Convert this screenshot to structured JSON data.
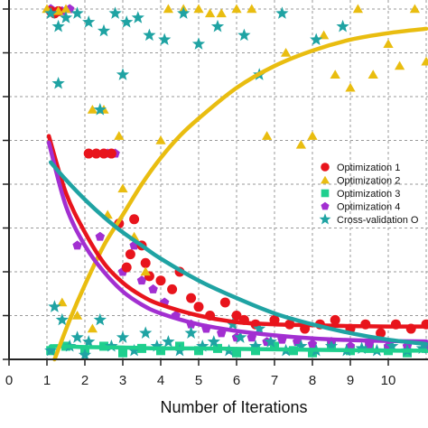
{
  "chart_data": {
    "type": "scatter",
    "title": "",
    "xlabel": "Number of Iterations",
    "ylabel": "",
    "xlim": [
      0,
      11
    ],
    "x_ticks": [
      "0",
      "1",
      "2",
      "3",
      "4",
      "5",
      "6",
      "7",
      "8",
      "9",
      "10"
    ],
    "ylim": [
      0,
      8
    ],
    "grid": true,
    "legend_placement": "right",
    "series": [
      {
        "name": "Optimization 1",
        "marker": "circle",
        "color": "#e8141c",
        "fit": {
          "x": [
            1.05,
            1.5,
            2,
            2.5,
            3,
            3.5,
            4,
            5,
            6,
            7,
            8,
            9,
            10,
            11
          ],
          "y": [
            5.1,
            3.8,
            2.9,
            2.2,
            1.75,
            1.45,
            1.25,
            1.0,
            0.85,
            0.8,
            0.78,
            0.76,
            0.75,
            0.75
          ]
        },
        "points": [
          [
            1.1,
            7.95
          ],
          [
            1.2,
            7.9
          ],
          [
            1.3,
            7.95
          ],
          [
            2.1,
            4.7
          ],
          [
            2.3,
            4.7
          ],
          [
            2.5,
            4.7
          ],
          [
            2.7,
            4.7
          ],
          [
            2.9,
            3.1
          ],
          [
            3.1,
            2.1
          ],
          [
            3.2,
            2.4
          ],
          [
            3.3,
            3.2
          ],
          [
            3.5,
            2.6
          ],
          [
            3.6,
            2.2
          ],
          [
            3.7,
            1.9
          ],
          [
            4.0,
            1.8
          ],
          [
            4.3,
            1.6
          ],
          [
            4.5,
            2.0
          ],
          [
            4.8,
            1.4
          ],
          [
            5.0,
            1.2
          ],
          [
            5.3,
            1.0
          ],
          [
            5.7,
            1.3
          ],
          [
            6.0,
            1.0
          ],
          [
            6.2,
            0.9
          ],
          [
            6.5,
            0.8
          ],
          [
            7.0,
            0.9
          ],
          [
            7.4,
            0.8
          ],
          [
            7.8,
            0.7
          ],
          [
            8.2,
            0.8
          ],
          [
            8.6,
            0.9
          ],
          [
            9.0,
            0.7
          ],
          [
            9.4,
            0.8
          ],
          [
            9.8,
            0.6
          ],
          [
            10.2,
            0.8
          ],
          [
            10.6,
            0.7
          ],
          [
            11.0,
            0.8
          ]
        ]
      },
      {
        "name": "Optimization 2",
        "marker": "triangle",
        "color": "#e9bd10",
        "fit": {
          "x": [
            1.2,
            1.6,
            2,
            2.5,
            3,
            3.5,
            4,
            4.5,
            5,
            6,
            7,
            8,
            9,
            10,
            11
          ],
          "y": [
            0.0,
            0.9,
            1.7,
            2.6,
            3.3,
            4.0,
            4.6,
            5.1,
            5.5,
            6.2,
            6.7,
            7.05,
            7.3,
            7.45,
            7.55
          ]
        },
        "points": [
          [
            1.0,
            8.0
          ],
          [
            1.3,
            7.95
          ],
          [
            1.5,
            8.0
          ],
          [
            2.2,
            5.7
          ],
          [
            2.5,
            5.7
          ],
          [
            2.9,
            5.1
          ],
          [
            3.3,
            2.8
          ],
          [
            3.6,
            2.0
          ],
          [
            4.0,
            5.0
          ],
          [
            4.2,
            8.0
          ],
          [
            4.6,
            8.0
          ],
          [
            5.0,
            8.0
          ],
          [
            5.3,
            7.9
          ],
          [
            5.6,
            7.9
          ],
          [
            6.0,
            8.0
          ],
          [
            6.4,
            8.0
          ],
          [
            6.8,
            5.1
          ],
          [
            7.3,
            7.0
          ],
          [
            7.7,
            4.9
          ],
          [
            8.0,
            5.1
          ],
          [
            8.3,
            7.4
          ],
          [
            8.6,
            6.5
          ],
          [
            9.0,
            6.2
          ],
          [
            9.2,
            8.0
          ],
          [
            9.6,
            6.5
          ],
          [
            10.0,
            7.2
          ],
          [
            10.3,
            6.7
          ],
          [
            10.7,
            8.0
          ],
          [
            11.0,
            6.8
          ],
          [
            1.4,
            1.3
          ],
          [
            1.8,
            1.0
          ],
          [
            2.2,
            0.7
          ],
          [
            2.6,
            3.3
          ],
          [
            3.0,
            3.9
          ]
        ]
      },
      {
        "name": "Optimization 3",
        "marker": "square",
        "color": "#1fcf8e",
        "fit": {
          "x": [
            1.1,
            1.5,
            2,
            3,
            4,
            5,
            6,
            7,
            8,
            9,
            10,
            11
          ],
          "y": [
            0.3,
            0.3,
            0.28,
            0.27,
            0.25,
            0.25,
            0.24,
            0.23,
            0.22,
            0.21,
            0.2,
            0.2
          ]
        },
        "points": [
          [
            1.1,
            0.2
          ],
          [
            1.5,
            0.3
          ],
          [
            2.0,
            0.2
          ],
          [
            2.5,
            0.3
          ],
          [
            3.0,
            0.15
          ],
          [
            3.5,
            0.25
          ],
          [
            4.0,
            0.2
          ],
          [
            4.5,
            0.3
          ],
          [
            5.0,
            0.2
          ],
          [
            5.5,
            0.25
          ],
          [
            6.0,
            0.15
          ],
          [
            6.5,
            0.2
          ],
          [
            7.0,
            0.3
          ],
          [
            7.5,
            0.2
          ],
          [
            8.0,
            0.15
          ],
          [
            8.5,
            0.3
          ],
          [
            9.0,
            0.2
          ],
          [
            9.5,
            0.25
          ],
          [
            10.0,
            0.2
          ],
          [
            10.5,
            0.15
          ],
          [
            11.0,
            0.25
          ]
        ]
      },
      {
        "name": "Optimization 4",
        "marker": "pentagon",
        "color": "#a22fd1",
        "fit": {
          "x": [
            1.05,
            1.5,
            2,
            2.5,
            3,
            3.5,
            4,
            5,
            6,
            7,
            8,
            9,
            10,
            11
          ],
          "y": [
            4.95,
            3.5,
            2.6,
            2.0,
            1.55,
            1.25,
            1.05,
            0.8,
            0.65,
            0.55,
            0.48,
            0.44,
            0.42,
            0.41
          ]
        },
        "points": [
          [
            1.1,
            8.0
          ],
          [
            1.4,
            7.95
          ],
          [
            1.6,
            8.0
          ],
          [
            2.1,
            4.7
          ],
          [
            2.3,
            4.7
          ],
          [
            2.6,
            4.7
          ],
          [
            2.8,
            4.7
          ],
          [
            3.0,
            2.0
          ],
          [
            3.3,
            2.6
          ],
          [
            3.5,
            1.8
          ],
          [
            3.8,
            1.6
          ],
          [
            4.1,
            1.3
          ],
          [
            4.4,
            1.0
          ],
          [
            4.8,
            0.8
          ],
          [
            5.2,
            0.7
          ],
          [
            5.6,
            0.6
          ],
          [
            6.0,
            0.5
          ],
          [
            6.4,
            0.5
          ],
          [
            6.8,
            0.4
          ],
          [
            7.2,
            0.45
          ],
          [
            7.6,
            0.4
          ],
          [
            8.0,
            0.35
          ],
          [
            8.5,
            0.4
          ],
          [
            9.0,
            0.3
          ],
          [
            9.5,
            0.35
          ],
          [
            10.0,
            0.3
          ],
          [
            10.5,
            0.3
          ],
          [
            11.0,
            0.3
          ],
          [
            1.8,
            2.6
          ],
          [
            2.4,
            2.8
          ]
        ]
      },
      {
        "name": "Cross-validation O",
        "marker": "star",
        "color": "#1fa3a3",
        "fit": {
          "x": [
            1.1,
            1.5,
            2,
            2.5,
            3,
            3.5,
            4,
            5,
            6,
            7,
            8,
            9,
            10,
            11
          ],
          "y": [
            4.5,
            4.1,
            3.65,
            3.25,
            2.9,
            2.6,
            2.3,
            1.8,
            1.4,
            1.05,
            0.8,
            0.6,
            0.45,
            0.35
          ]
        },
        "points": [
          [
            1.1,
            7.9
          ],
          [
            1.3,
            7.6
          ],
          [
            1.5,
            7.8
          ],
          [
            1.8,
            7.9
          ],
          [
            2.1,
            7.7
          ],
          [
            2.5,
            7.5
          ],
          [
            2.8,
            7.9
          ],
          [
            3.1,
            7.7
          ],
          [
            3.4,
            7.8
          ],
          [
            3.7,
            7.4
          ],
          [
            4.1,
            7.3
          ],
          [
            4.6,
            7.9
          ],
          [
            5.0,
            7.2
          ],
          [
            5.5,
            7.6
          ],
          [
            6.2,
            7.4
          ],
          [
            6.6,
            6.5
          ],
          [
            7.2,
            7.9
          ],
          [
            8.1,
            7.3
          ],
          [
            8.8,
            7.6
          ],
          [
            1.3,
            6.3
          ],
          [
            3.0,
            6.5
          ],
          [
            2.4,
            5.7
          ],
          [
            1.2,
            1.2
          ],
          [
            1.4,
            0.9
          ],
          [
            1.6,
            0.3
          ],
          [
            1.8,
            0.5
          ],
          [
            2.1,
            0.4
          ],
          [
            2.4,
            0.9
          ],
          [
            2.7,
            0.3
          ],
          [
            3.0,
            0.5
          ],
          [
            3.3,
            0.2
          ],
          [
            3.6,
            0.6
          ],
          [
            3.9,
            0.3
          ],
          [
            4.2,
            0.4
          ],
          [
            4.5,
            0.2
          ],
          [
            4.8,
            0.6
          ],
          [
            5.1,
            0.3
          ],
          [
            5.4,
            0.4
          ],
          [
            5.8,
            0.2
          ],
          [
            6.1,
            0.5
          ],
          [
            6.5,
            0.3
          ],
          [
            6.9,
            0.4
          ],
          [
            7.3,
            0.2
          ],
          [
            7.7,
            0.3
          ],
          [
            8.1,
            0.2
          ],
          [
            8.5,
            0.3
          ],
          [
            8.9,
            0.2
          ],
          [
            9.3,
            0.25
          ],
          [
            9.7,
            0.2
          ],
          [
            10.1,
            0.3
          ],
          [
            10.5,
            0.2
          ],
          [
            10.9,
            0.25
          ],
          [
            1.1,
            0.2
          ],
          [
            2.0,
            0.1
          ],
          [
            5.9,
            0.8
          ],
          [
            6.6,
            0.7
          ]
        ]
      }
    ]
  }
}
